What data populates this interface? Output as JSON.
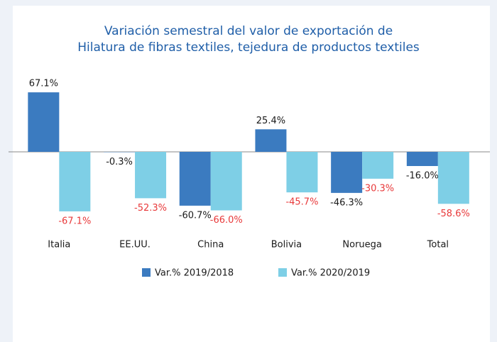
{
  "chart_data": {
    "type": "bar",
    "title": [
      "Variación semestral del valor de exportación de",
      "Hilatura de fibras textiles, tejedura de productos textiles"
    ],
    "categories": [
      "Italia",
      "EE.UU.",
      "China",
      "Bolivia",
      "Noruega",
      "Total"
    ],
    "series": [
      {
        "name": "Var.% 2019/2018",
        "color": "#3b7bc0",
        "label_color": "#1a1a1a",
        "values": [
          67.1,
          -0.3,
          -60.7,
          25.4,
          -46.3,
          -16.0
        ],
        "value_labels": [
          "67.1%",
          "-0.3%",
          "-60.7%",
          "25.4%",
          "-46.3%",
          "-16.0%"
        ]
      },
      {
        "name": "Var.% 2020/2019",
        "color": "#7ecfe6",
        "label_color": "#e8393a",
        "values": [
          -67.1,
          -52.3,
          -66.0,
          -45.7,
          -30.3,
          -58.6
        ],
        "value_labels": [
          "-67.1%",
          "-52.3%",
          "-66.0%",
          "-45.7%",
          "-30.3%",
          "-58.6%"
        ]
      }
    ],
    "legend": "bottom"
  }
}
